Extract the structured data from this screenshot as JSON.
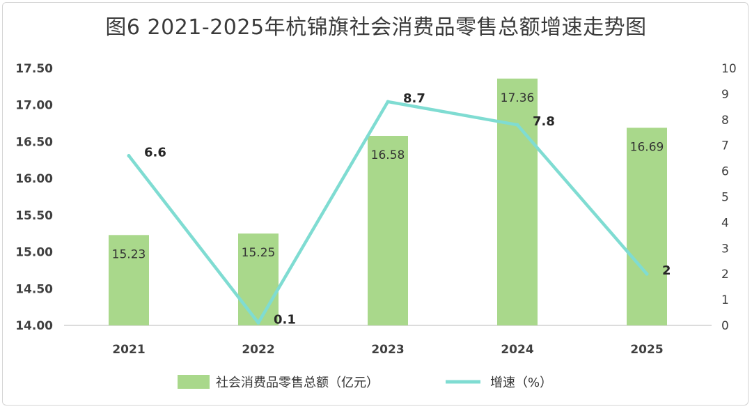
{
  "chart_data": {
    "type": "bar+line",
    "title": "图6   2021-2025年杭锦旗社会消费品零售总额增速走势图",
    "categories": [
      "2021",
      "2022",
      "2023",
      "2024",
      "2025"
    ],
    "series": [
      {
        "name": "社会消费品零售总额（亿元）",
        "type": "bar",
        "axis": "left",
        "values": [
          15.23,
          15.25,
          16.58,
          17.36,
          16.69
        ],
        "labels": [
          "15.23",
          "15.25",
          "16.58",
          "17.36",
          "16.69"
        ],
        "color": "#a9d88b"
      },
      {
        "name": "增速（%）",
        "type": "line",
        "axis": "right",
        "values": [
          6.6,
          0.1,
          8.7,
          7.8,
          2
        ],
        "labels": [
          "6.6",
          "0.1",
          "8.7",
          "7.8",
          "2"
        ],
        "color": "#7fdcd2"
      }
    ],
    "y_left": {
      "ylim": [
        14.0,
        17.5
      ],
      "ticks": [
        "14.00",
        "14.50",
        "15.00",
        "15.50",
        "16.00",
        "16.50",
        "17.00",
        "17.50"
      ]
    },
    "y_right": {
      "ylim": [
        0,
        10
      ],
      "ticks": [
        "0",
        "1",
        "2",
        "3",
        "4",
        "5",
        "6",
        "7",
        "8",
        "9",
        "10"
      ]
    },
    "grid": false,
    "legend_position": "bottom"
  }
}
